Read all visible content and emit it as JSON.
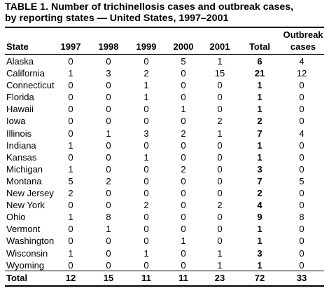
{
  "title": "TABLE 1.  Number of trichinellosis cases and outbreak cases,\nby reporting states — United States, 1997–2001",
  "headers": {
    "state": "State",
    "y1997": "1997",
    "y1998": "1998",
    "y1999": "1999",
    "y2000": "2000",
    "y2001": "2001",
    "total": "Total",
    "outbreak_line1": "Outbreak",
    "outbreak_line2": "cases"
  },
  "rows": [
    {
      "state": "Alaska",
      "v": [
        "0",
        "0",
        "0",
        "5",
        "1",
        "6",
        "4"
      ]
    },
    {
      "state": "California",
      "v": [
        "1",
        "3",
        "2",
        "0",
        "15",
        "21",
        "12"
      ]
    },
    {
      "state": "Connecticut",
      "v": [
        "0",
        "0",
        "1",
        "0",
        "0",
        "1",
        "0"
      ]
    },
    {
      "state": "Florida",
      "v": [
        "0",
        "0",
        "1",
        "0",
        "0",
        "1",
        "0"
      ]
    },
    {
      "state": "Hawaii",
      "v": [
        "0",
        "0",
        "0",
        "1",
        "0",
        "1",
        "0"
      ]
    },
    {
      "state": "Iowa",
      "v": [
        "0",
        "0",
        "0",
        "0",
        "2",
        "2",
        "0"
      ]
    },
    {
      "state": "Illinois",
      "v": [
        "0",
        "1",
        "3",
        "2",
        "1",
        "7",
        "4"
      ]
    },
    {
      "state": "Indiana",
      "v": [
        "1",
        "0",
        "0",
        "0",
        "0",
        "1",
        "0"
      ]
    },
    {
      "state": "Kansas",
      "v": [
        "0",
        "0",
        "1",
        "0",
        "0",
        "1",
        "0"
      ]
    },
    {
      "state": "Michigan",
      "v": [
        "1",
        "0",
        "0",
        "2",
        "0",
        "3",
        "0"
      ]
    },
    {
      "state": "Montana",
      "v": [
        "5",
        "2",
        "0",
        "0",
        "0",
        "7",
        "5"
      ]
    },
    {
      "state": "New Jersey",
      "v": [
        "2",
        "0",
        "0",
        "0",
        "0",
        "2",
        "0"
      ]
    },
    {
      "state": "New York",
      "v": [
        "0",
        "0",
        "2",
        "0",
        "2",
        "4",
        "0"
      ]
    },
    {
      "state": "Ohio",
      "v": [
        "1",
        "8",
        "0",
        "0",
        "0",
        "9",
        "8"
      ]
    },
    {
      "state": "Vermont",
      "v": [
        "0",
        "1",
        "0",
        "0",
        "0",
        "1",
        "0"
      ]
    },
    {
      "state": "Washington",
      "v": [
        "0",
        "0",
        "0",
        "1",
        "0",
        "1",
        "0"
      ]
    },
    {
      "state": "Wisconsin",
      "v": [
        "1",
        "0",
        "1",
        "0",
        "1",
        "3",
        "0"
      ]
    },
    {
      "state": "Wyoming",
      "v": [
        "0",
        "0",
        "0",
        "0",
        "1",
        "1",
        "0"
      ]
    }
  ],
  "total": {
    "label": "Total",
    "v": [
      "12",
      "15",
      "11",
      "11",
      "23",
      "72",
      "33"
    ]
  }
}
